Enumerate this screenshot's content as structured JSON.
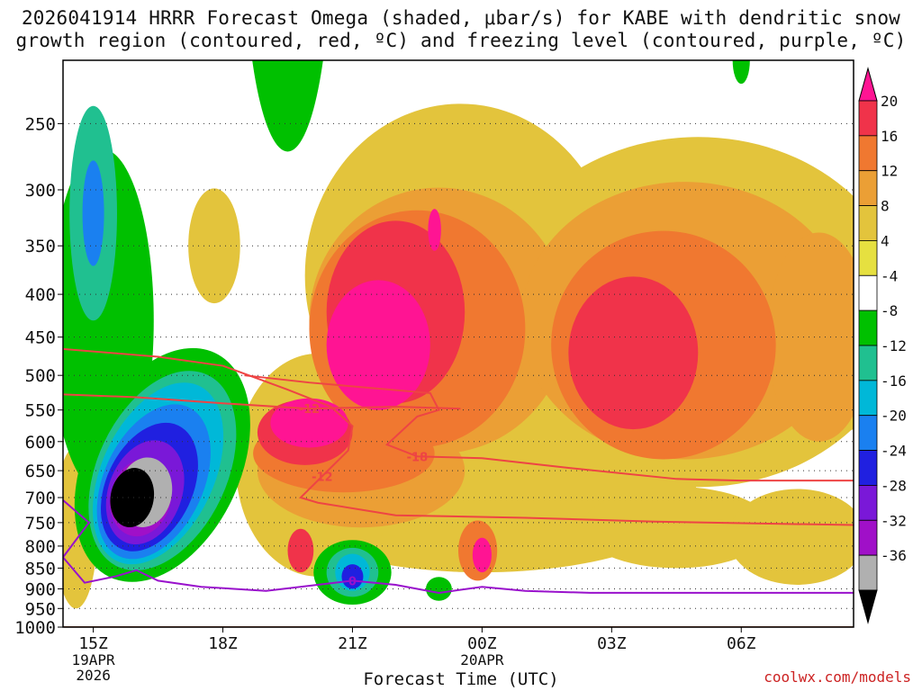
{
  "title": {
    "line1": "2026041914 HRRR Forecast Omega (shaded, μbar/s) for KABE with dendritic snow",
    "line2": "growth region (contoured, red, ºC) and freezing level (contoured, purple, ºC)"
  },
  "xlabel": "Forecast Time (UTC)",
  "credit": "coolwx.com/models",
  "colors": {
    "ground": "#a0522d",
    "dgz_contour": "#ee4444",
    "freezing_contour": "#9911cc"
  },
  "chart_data": {
    "type": "heatmap",
    "variable": "Omega",
    "units": "μbar/s",
    "y_axis": {
      "label": "",
      "scale": "log",
      "range": [
        1000,
        210
      ],
      "ticks": [
        250,
        300,
        350,
        400,
        450,
        500,
        550,
        600,
        650,
        700,
        750,
        800,
        850,
        900,
        950,
        1000
      ]
    },
    "x_axis": {
      "label": "Forecast Time (UTC)",
      "range_hours": [
        14.3,
        32.6
      ],
      "ticks": [
        {
          "hour": 15,
          "label": "15Z",
          "sub": [
            "19APR",
            "2026"
          ]
        },
        {
          "hour": 18,
          "label": "18Z",
          "sub": []
        },
        {
          "hour": 21,
          "label": "21Z",
          "sub": []
        },
        {
          "hour": 24,
          "label": "00Z",
          "sub": [
            "20APR"
          ]
        },
        {
          "hour": 27,
          "label": "03Z",
          "sub": []
        },
        {
          "hour": 30,
          "label": "06Z",
          "sub": []
        }
      ]
    },
    "colorbar": {
      "levels": [
        20,
        16,
        12,
        8,
        4,
        -4,
        -8,
        -12,
        -16,
        -20,
        -24,
        -28,
        -32,
        -36
      ],
      "colors": [
        "#ff1493",
        "#f0334a",
        "#f07830",
        "#eb9f35",
        "#e3c43c",
        "#e6e040",
        "#ffffff",
        "#00c000",
        "#20c090",
        "#00b8d8",
        "#1a80f0",
        "#2020e0",
        "#7a18d8",
        "#a010c8",
        "#b0b0b0",
        "#000000"
      ]
    },
    "features": [
      {
        "type": "strong_upward",
        "center_hour": 16.2,
        "center_pressure": 700,
        "omega_min": -36
      },
      {
        "type": "strong_upward",
        "center_hour": 15.0,
        "center_pressure": 320,
        "omega_min": -16
      },
      {
        "type": "strong_downward",
        "center_hour": 21.6,
        "center_pressure": 450,
        "omega_max": 20
      },
      {
        "type": "strong_downward",
        "center_hour": 20.0,
        "center_pressure": 580,
        "omega_max": 20
      },
      {
        "type": "strong_downward",
        "center_hour": 27.5,
        "center_pressure": 450,
        "omega_max": 16
      },
      {
        "type": "upward",
        "center_hour": 21.0,
        "center_pressure": 860,
        "omega_min": -24
      },
      {
        "type": "downward",
        "center_hour": 24.0,
        "center_pressure": 820,
        "omega_max": 20
      }
    ],
    "contours": [
      {
        "kind": "dendritic_growth",
        "value": -12,
        "label": "-12",
        "points": [
          [
            14.3,
            465
          ],
          [
            16.5,
            475
          ],
          [
            18.0,
            487
          ],
          [
            19.5,
            520
          ],
          [
            20.5,
            545
          ],
          [
            21.0,
            575
          ],
          [
            20.9,
            615
          ],
          [
            20.3,
            660
          ],
          [
            19.8,
            700
          ],
          [
            20.2,
            710
          ],
          [
            22.0,
            735
          ],
          [
            25.0,
            740
          ],
          [
            28.0,
            748
          ],
          [
            32.6,
            755
          ]
        ]
      },
      {
        "kind": "dendritic_growth",
        "value": -12,
        "label": "-12",
        "points": [
          [
            14.3,
            527
          ],
          [
            16.0,
            531
          ],
          [
            18.0,
            540
          ],
          [
            20.0,
            548
          ],
          [
            22.0,
            545
          ],
          [
            23.5,
            548
          ]
        ]
      },
      {
        "kind": "dendritic_growth",
        "value": -18,
        "label": "-18",
        "points": [
          [
            18.5,
            500
          ],
          [
            20.0,
            510
          ],
          [
            21.5,
            518
          ],
          [
            22.8,
            525
          ],
          [
            23.0,
            550
          ],
          [
            22.5,
            560
          ],
          [
            21.8,
            605
          ],
          [
            22.5,
            625
          ],
          [
            24.0,
            628
          ],
          [
            26.0,
            645
          ],
          [
            28.5,
            665
          ],
          [
            30.0,
            668
          ],
          [
            32.6,
            668
          ]
        ]
      },
      {
        "kind": "freezing_level",
        "value": 0,
        "label": "0",
        "points": [
          [
            14.3,
            705
          ],
          [
            14.9,
            750
          ],
          [
            14.3,
            825
          ],
          [
            14.8,
            885
          ],
          [
            15.5,
            870
          ],
          [
            16.0,
            855
          ],
          [
            16.5,
            880
          ],
          [
            17.5,
            895
          ],
          [
            19.0,
            905
          ],
          [
            21.0,
            880
          ],
          [
            22.0,
            890
          ],
          [
            23.0,
            910
          ],
          [
            24.0,
            895
          ],
          [
            25.0,
            905
          ],
          [
            26.5,
            910
          ],
          [
            28.0,
            910
          ],
          [
            30.0,
            910
          ],
          [
            32.6,
            910
          ]
        ]
      }
    ]
  }
}
